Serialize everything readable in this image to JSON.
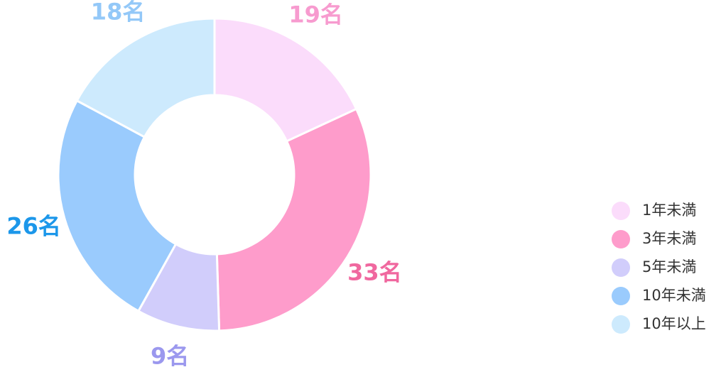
{
  "chart_data": {
    "type": "donut",
    "categories": [
      "1年未満",
      "3年未満",
      "5年未満",
      "10年未満",
      "10年以上"
    ],
    "values": [
      19,
      33,
      9,
      26,
      18
    ],
    "value_labels": [
      "19名",
      "33名",
      "9名",
      "26名",
      "18名"
    ],
    "colors": [
      "#fbdcfb",
      "#fe9ccb",
      "#d1cdfb",
      "#9acbfd",
      "#cdeafd"
    ],
    "label_colors": [
      "#f79bcf",
      "#f0689f",
      "#9b98ee",
      "#1c97ea",
      "#93c8f8"
    ],
    "legend": "right"
  }
}
